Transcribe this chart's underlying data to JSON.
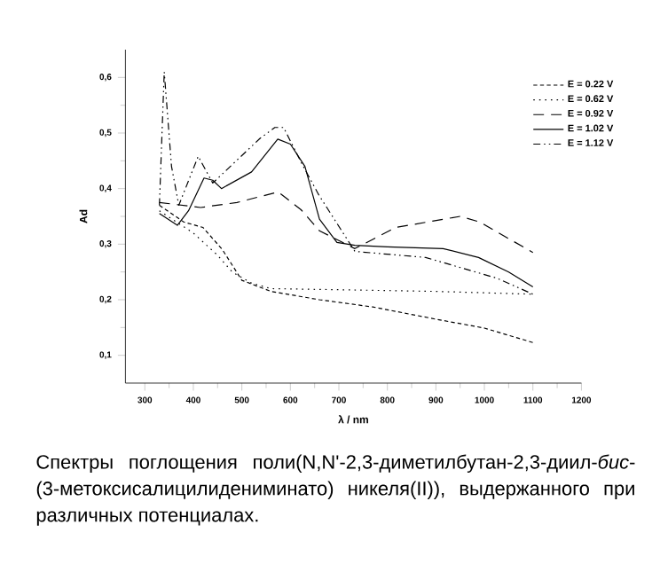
{
  "chart_data": {
    "type": "line",
    "xlabel": "λ / nm",
    "ylabel": "Ad",
    "xlim": [
      260,
      1200
    ],
    "ylim": [
      0.05,
      0.65
    ],
    "xticks": [
      300,
      400,
      500,
      600,
      700,
      800,
      900,
      1000,
      1100,
      1200
    ],
    "yticks": [
      {
        "value": 0.1,
        "label": "0,1"
      },
      {
        "value": 0.2,
        "label": "0,2"
      },
      {
        "value": 0.3,
        "label": "0,3"
      },
      {
        "value": 0.4,
        "label": "0,4"
      },
      {
        "value": 0.5,
        "label": "0,5"
      },
      {
        "value": 0.6,
        "label": "0,6"
      }
    ],
    "legend": "top right",
    "grid": false,
    "series": [
      {
        "name": "E = 0.22 V",
        "color": "#000000",
        "line_style": "dashed",
        "x": [
          330,
          380,
          420,
          460,
          500,
          560,
          660,
          770,
          900,
          1000,
          1100
        ],
        "values": [
          0.37,
          0.34,
          0.33,
          0.29,
          0.235,
          0.215,
          0.2,
          0.187,
          0.165,
          0.149,
          0.123
        ]
      },
      {
        "name": "E = 0.62 V",
        "color": "#000000",
        "line_style": "dotted",
        "x": [
          330,
          400,
          450,
          480,
          520,
          560,
          700,
          900,
          1100
        ],
        "values": [
          0.36,
          0.32,
          0.28,
          0.25,
          0.23,
          0.22,
          0.218,
          0.215,
          0.21
        ]
      },
      {
        "name": "E = 0.92 V",
        "color": "#000000",
        "line_style": "long dashed",
        "x": [
          330,
          415,
          490,
          575,
          622,
          660,
          733,
          817,
          950,
          990,
          1100
        ],
        "values": [
          0.375,
          0.366,
          0.375,
          0.394,
          0.362,
          0.324,
          0.292,
          0.33,
          0.35,
          0.34,
          0.285
        ]
      },
      {
        "name": "E = 1.02 V",
        "color": "#000000",
        "line_style": "solid",
        "x": [
          330,
          367,
          390,
          422,
          440,
          458,
          520,
          574,
          600,
          630,
          660,
          696,
          733,
          800,
          915,
          988,
          1050,
          1100
        ],
        "values": [
          0.355,
          0.334,
          0.36,
          0.419,
          0.415,
          0.4,
          0.43,
          0.489,
          0.48,
          0.44,
          0.345,
          0.303,
          0.298,
          0.295,
          0.292,
          0.276,
          0.25,
          0.223
        ]
      },
      {
        "name": "E = 1.12 V",
        "color": "#000000",
        "line_style": "dashdotdotted",
        "x": [
          330,
          340,
          355,
          370,
          410,
          440,
          537,
          568,
          586,
          623,
          659,
          733,
          879,
          1025,
          1100
        ],
        "values": [
          0.37,
          0.61,
          0.44,
          0.37,
          0.458,
          0.41,
          0.49,
          0.51,
          0.51,
          0.446,
          0.388,
          0.287,
          0.276,
          0.239,
          0.21
        ]
      }
    ],
    "annotations": [
      "Спектры поглощения поли(N,N'-2,3-диметилбутан-2,3-диил-*бис*-(3-метоксисалицилидениминато) никеля(II)), выдержанного при различных потенциалах."
    ]
  }
}
